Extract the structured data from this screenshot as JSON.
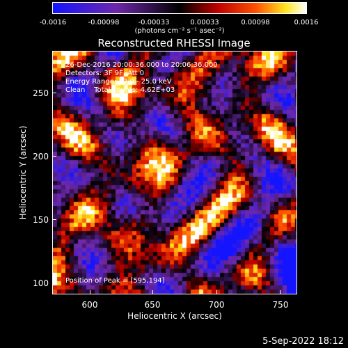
{
  "colorbar": {
    "ticks": [
      "-0.0016",
      "-0.00098",
      "-0.00033",
      "0.00033",
      "0.00098",
      "0.0016"
    ],
    "unit_label": "(photons cm⁻² s⁻¹ asec⁻²)"
  },
  "title": "Reconstructed RHESSI Image",
  "info": {
    "line1": "26-Dec-2016 20:00:36.000 to 20:06:36.000",
    "line2": "Detectors: 3F 9F, Att 0",
    "line3": "Energy Range: 12.0 - 25.0 keV",
    "line4": "Clean    Total counts: 4.62E+03",
    "peak": "Position of Peak = [595,194]"
  },
  "axes": {
    "xlabel": "Heliocentric X (arcsec)",
    "ylabel": "Heliocentric Y (arcsec)",
    "xticks": [
      "600",
      "650",
      "700",
      "750"
    ],
    "yticks": [
      "250",
      "200",
      "150",
      "100"
    ]
  },
  "timestamp": "5-Sep-2022 18:12",
  "colors": {
    "background": "#000000",
    "text": "#ffffff"
  }
}
